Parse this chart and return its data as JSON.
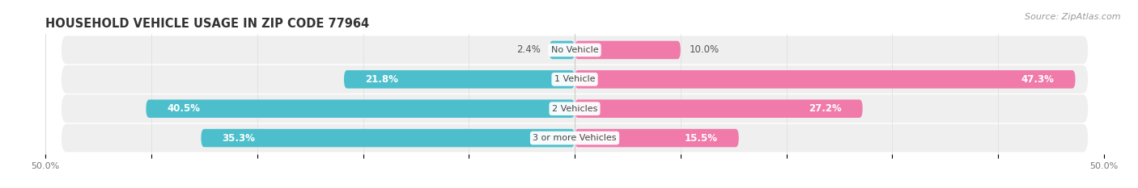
{
  "title": "HOUSEHOLD VEHICLE USAGE IN ZIP CODE 77964",
  "source": "Source: ZipAtlas.com",
  "categories": [
    "No Vehicle",
    "1 Vehicle",
    "2 Vehicles",
    "3 or more Vehicles"
  ],
  "owner_values": [
    2.4,
    21.8,
    40.5,
    35.3
  ],
  "renter_values": [
    10.0,
    47.3,
    27.2,
    15.5
  ],
  "owner_color": "#4dbfcc",
  "renter_color": "#f07aaa",
  "renter_color_light": "#f9b8d0",
  "row_bg_color": "#efefef",
  "row_bg_color_white": "#f8f8f8",
  "xlim_left": -50,
  "xlim_right": 50,
  "bar_height": 0.62,
  "title_fontsize": 10.5,
  "source_fontsize": 8,
  "label_fontsize": 8.5,
  "category_fontsize": 8.0,
  "tick_fontsize": 8.0
}
